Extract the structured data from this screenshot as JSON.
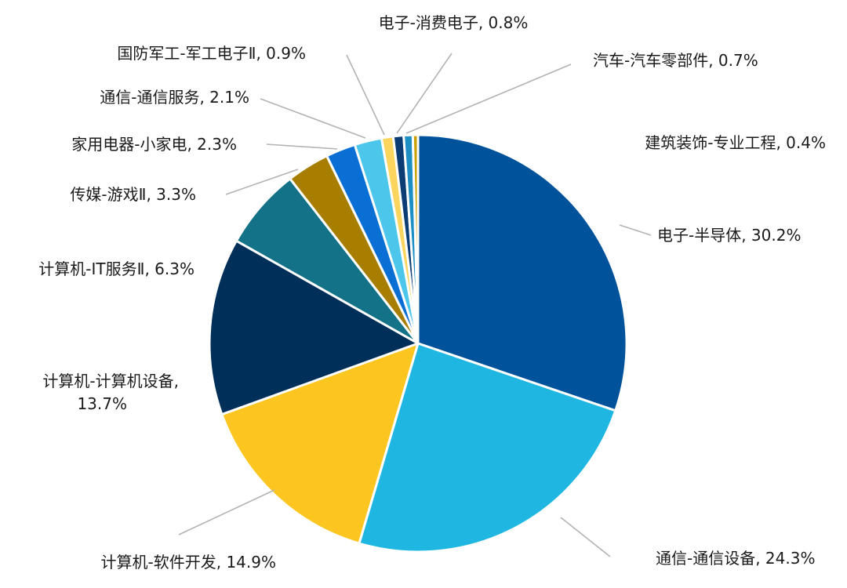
{
  "chart_data": {
    "type": "pie",
    "title": "",
    "legend": "none",
    "label_format": "name, percent",
    "slices": [
      {
        "name": "电子-半导体",
        "value": 30.2,
        "label": "电子-半导体, 30.2%",
        "color": "#00539B"
      },
      {
        "name": "通信-通信设备",
        "value": 24.3,
        "label": "通信-通信设备, 24.3%",
        "color": "#1FB7E2"
      },
      {
        "name": "计算机-软件开发",
        "value": 14.9,
        "label": "计算机-软件开发, 14.9%",
        "color": "#FDC51F"
      },
      {
        "name": "计算机-计算机设备",
        "value": 13.7,
        "label": "计算机-计算机设备,",
        "label2": "13.7%",
        "color": "#00305A"
      },
      {
        "name": "计算机-IT服务Ⅱ",
        "value": 6.3,
        "label": "计算机-IT服务Ⅱ, 6.3%",
        "color": "#137287"
      },
      {
        "name": "传媒-游戏Ⅱ",
        "value": 3.3,
        "label": "传媒-游戏Ⅱ, 3.3%",
        "color": "#A87E00"
      },
      {
        "name": "家用电器-小家电",
        "value": 2.3,
        "label": "家用电器-小家电, 2.3%",
        "color": "#0A6FD5"
      },
      {
        "name": "通信-通信服务",
        "value": 2.1,
        "label": "通信-通信服务, 2.1%",
        "color": "#4CC6EA"
      },
      {
        "name": "国防军工-军工电子Ⅱ",
        "value": 0.9,
        "label": "国防军工-军工电子Ⅱ, 0.9%",
        "color": "#FCD55E"
      },
      {
        "name": "电子-消费电子",
        "value": 0.8,
        "label": "电子-消费电子, 0.8%",
        "color": "#0B3C73"
      },
      {
        "name": "汽车-汽车零部件",
        "value": 0.7,
        "label": "汽车-汽车零部件, 0.7%",
        "color": "#1E8FC5"
      },
      {
        "name": "建筑装饰-专业工程",
        "value": 0.4,
        "label": "建筑装饰-专业工程, 0.4%",
        "color": "#C9A100"
      }
    ]
  }
}
